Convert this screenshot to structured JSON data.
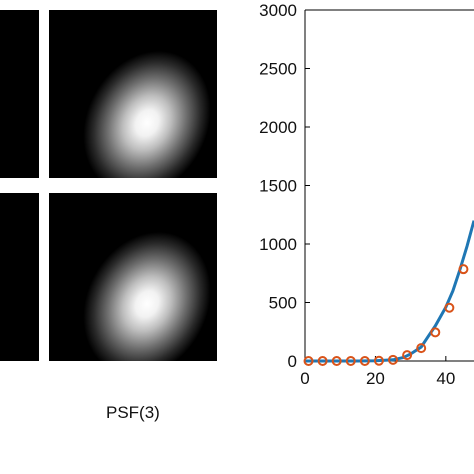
{
  "caption": "PSF(3)",
  "colors": {
    "line": "#1f77b4",
    "marker": "#d95319",
    "axis": "#000000"
  },
  "chart_data": {
    "type": "line",
    "xlim": [
      0,
      48
    ],
    "ylim": [
      0,
      3000
    ],
    "xticks": [
      0,
      20,
      40
    ],
    "yticks": [
      0,
      500,
      1000,
      1500,
      2000,
      2500,
      3000
    ],
    "grid": false,
    "series": [
      {
        "style": "line",
        "x": [
          0,
          5,
          10,
          15,
          20,
          25,
          28,
          30,
          33,
          35,
          37,
          40,
          42,
          44,
          46,
          48
        ],
        "y": [
          0,
          0,
          0,
          0,
          2,
          10,
          30,
          60,
          120,
          210,
          300,
          460,
          600,
          780,
          980,
          1200
        ]
      },
      {
        "style": "markers",
        "x": [
          1,
          5,
          9,
          13,
          17,
          21,
          25,
          29,
          33,
          37,
          41,
          45
        ],
        "y": [
          0,
          0,
          0,
          0,
          0,
          2,
          10,
          50,
          110,
          245,
          455,
          785
        ]
      }
    ]
  }
}
